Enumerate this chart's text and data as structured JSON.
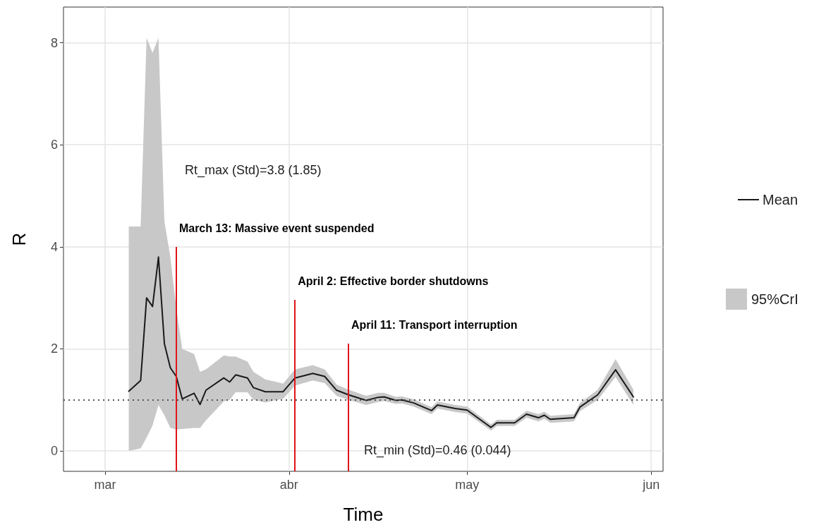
{
  "chart_data": {
    "type": "line",
    "xlabel": "Time",
    "ylabel": "R",
    "x": [
      "--03-05",
      "--03-07",
      "--03-08",
      "--03-09",
      "--03-10",
      "--03-11",
      "--03-12",
      "--03-13",
      "--03-14",
      "--03-16",
      "--03-17",
      "--03-18",
      "--03-21",
      "--03-22",
      "--03-23",
      "--03-25",
      "--03-26",
      "--03-28",
      "--03-30",
      "--03-31",
      "--04-02",
      "--04-05",
      "--04-07",
      "--04-09",
      "--04-11",
      "--04-14",
      "--04-16",
      "--04-17",
      "--04-19",
      "--04-20",
      "--04-22",
      "--04-25",
      "--04-26",
      "--04-29",
      "--05-01",
      "--05-05",
      "--05-06",
      "--05-09",
      "--05-11",
      "--05-13",
      "--05-14",
      "--05-15",
      "--05-19",
      "--05-20",
      "--05-23",
      "--05-26",
      "--05-29"
    ],
    "series": [
      {
        "name": "Mean",
        "color": "#1a1a1a",
        "values": [
          1.17,
          1.38,
          3.0,
          2.83,
          3.8,
          2.1,
          1.63,
          1.46,
          1.02,
          1.13,
          0.91,
          1.19,
          1.43,
          1.35,
          1.49,
          1.43,
          1.24,
          1.16,
          1.16,
          1.16,
          1.43,
          1.52,
          1.46,
          1.19,
          1.1,
          0.99,
          1.05,
          1.06,
          0.99,
          1.0,
          0.94,
          0.79,
          0.9,
          0.83,
          0.8,
          0.46,
          0.55,
          0.55,
          0.72,
          0.65,
          0.7,
          0.62,
          0.65,
          0.86,
          1.1,
          1.59,
          1.06
        ],
        "lower": [
          0,
          0.05,
          0.26,
          0.5,
          0.9,
          0.7,
          0.45,
          0.42,
          0.43,
          0.45,
          0.45,
          0.6,
          0.97,
          1.0,
          1.15,
          1.15,
          1.0,
          0.95,
          1.0,
          1.02,
          1.28,
          1.38,
          1.33,
          1.08,
          1.0,
          0.9,
          0.96,
          0.98,
          0.92,
          0.93,
          0.87,
          0.72,
          0.83,
          0.76,
          0.73,
          0.4,
          0.49,
          0.49,
          0.65,
          0.58,
          0.63,
          0.55,
          0.58,
          0.78,
          1.0,
          1.45,
          0.9
        ],
        "upper": [
          4.4,
          4.4,
          8.1,
          7.8,
          8.1,
          4.5,
          3.8,
          2.8,
          2.0,
          1.9,
          1.55,
          1.6,
          1.87,
          1.85,
          1.85,
          1.75,
          1.55,
          1.4,
          1.35,
          1.32,
          1.6,
          1.68,
          1.6,
          1.3,
          1.2,
          1.08,
          1.14,
          1.14,
          1.06,
          1.07,
          1.01,
          0.86,
          0.97,
          0.9,
          0.87,
          0.52,
          0.61,
          0.61,
          0.79,
          0.72,
          0.77,
          0.69,
          0.72,
          0.94,
          1.2,
          1.8,
          1.2
        ]
      }
    ],
    "xlim": [
      "--02-22",
      "--06-03"
    ],
    "xticks": [
      {
        "value": "--03-01",
        "label": "mar"
      },
      {
        "value": "--04-01",
        "label": "abr"
      },
      {
        "value": "--05-01",
        "label": "may"
      },
      {
        "value": "--06-01",
        "label": "jun"
      }
    ],
    "ylim": [
      -0.4,
      8.7
    ],
    "yticks": [
      0,
      2,
      4,
      6,
      8
    ],
    "ref_lines": [
      {
        "axis": "y",
        "value": 1,
        "color": "#555555",
        "line_style": "dotted"
      },
      {
        "axis": "x",
        "value": "--03-13",
        "color": "#e0141b",
        "label": "March 13: Massive event suspended"
      },
      {
        "axis": "x",
        "value": "--04-02",
        "color": "#e0141b",
        "label": "April 2: Effective border shutdowns"
      },
      {
        "axis": "x",
        "value": "--04-11",
        "color": "#e0141b",
        "label": "April 11: Transport interruption"
      }
    ],
    "annotations": [
      "Rt_max (Std)=3.8 (1.85)",
      "Rt_min (Std)=0.46 (0.044)",
      "95%CrI"
    ],
    "grid": true,
    "legend": "right",
    "marker": "none",
    "line_style": "solid"
  }
}
